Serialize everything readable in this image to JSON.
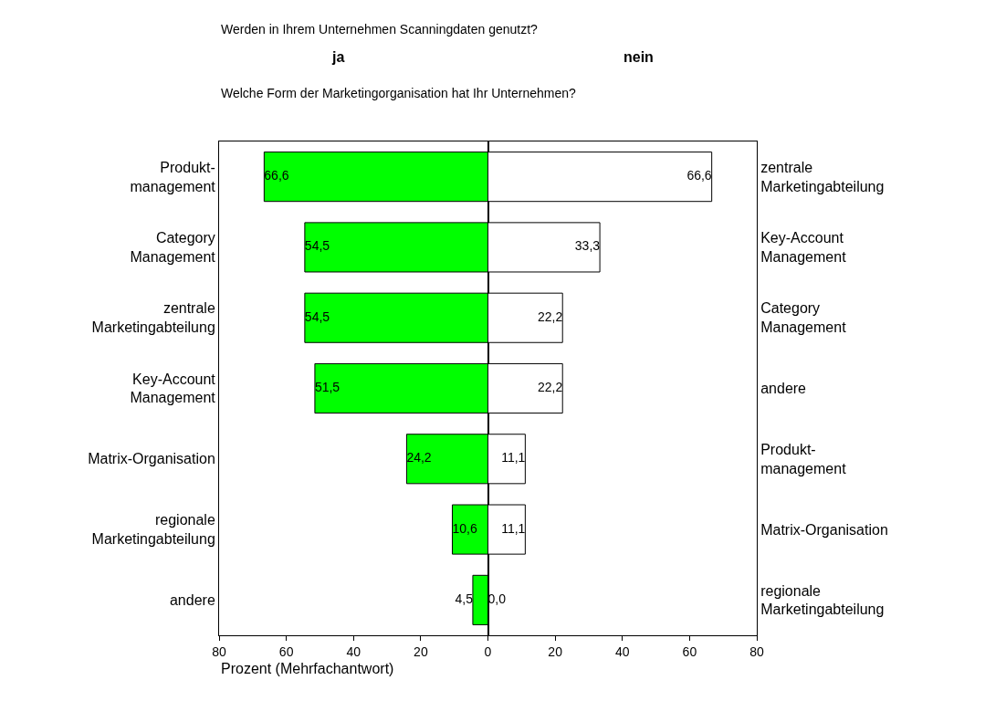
{
  "chart_data": [
    {
      "type": "bar",
      "orientation": "horizontal",
      "title": "ja",
      "xlabel": "Prozent (Mehrfachantwort)",
      "annotations": [
        "Werden in Ihrem Unternehmen Scanningdaten genutzt?",
        "Welche Form der Marketingorganisation hat Ihr Unternehmen?"
      ],
      "categories": [
        "Produkt-\nmanagement",
        "Category\nManagement",
        "zentrale\nMarketingabteilung",
        "Key-Account\nManagement",
        "Matrix-Organisation",
        "regionale\nMarketingabteilung",
        "andere"
      ],
      "values": [
        66.6,
        54.5,
        54.5,
        51.5,
        24.2,
        10.6,
        4.5
      ],
      "value_labels": [
        "66,6",
        "54,5",
        "54,5",
        "51,5",
        "24,2",
        "10,6",
        "4,5"
      ],
      "color": "#00ff00",
      "xlim": [
        80,
        0
      ],
      "xticks": [
        80,
        60,
        40,
        20
      ]
    },
    {
      "type": "bar",
      "orientation": "horizontal",
      "title": "nein",
      "categories": [
        "zentrale\nMarketingabteilung",
        "Key-Account\nManagement",
        "Category\nManagement",
        "andere",
        "Produkt-\nmanagement",
        "Matrix-Organisation",
        "regionale\nMarketingabteilung"
      ],
      "values": [
        66.6,
        33.3,
        22.2,
        22.2,
        11.1,
        11.1,
        0.0
      ],
      "value_labels": [
        "66,6",
        "33,3",
        "22,2",
        "22,2",
        "11,1",
        "11,1",
        "0,0"
      ],
      "color": "#ffffff",
      "xlim": [
        0,
        80
      ],
      "xticks": [
        0,
        20,
        40,
        60,
        80
      ]
    }
  ]
}
